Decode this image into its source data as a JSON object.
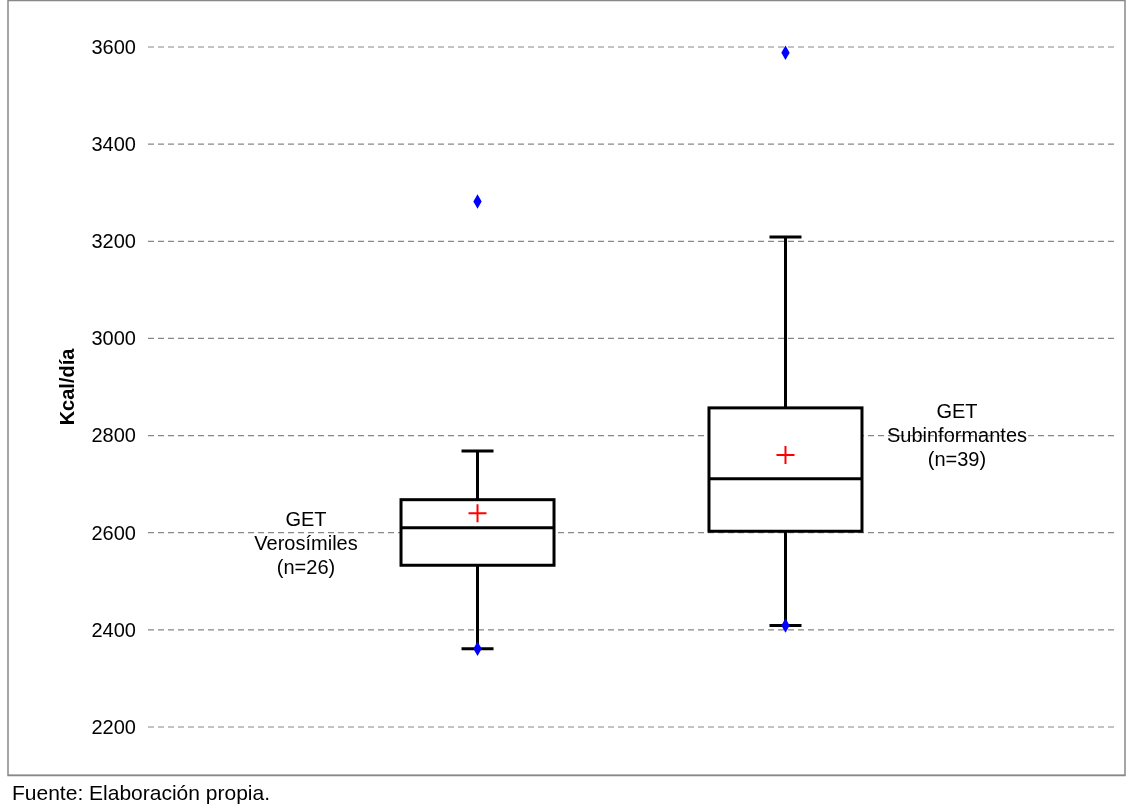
{
  "chart_data": {
    "type": "box",
    "ylabel": "Kcal/día",
    "categories": [
      "GET Verosímiles (n=26)",
      "GET Subinformantes (n=39)"
    ],
    "boxes": [
      {
        "low": 2361,
        "q1": 2533,
        "median": 2610,
        "q3": 2668,
        "high": 2768,
        "mean": 2640,
        "outliers": [
          2361,
          3282
        ]
      },
      {
        "low": 2409,
        "q1": 2603,
        "median": 2711,
        "q3": 2857,
        "high": 3209,
        "mean": 2760,
        "outliers": [
          2409,
          3588
        ]
      }
    ],
    "ylim": [
      2200,
      3600
    ],
    "yticks": [
      2200,
      2400,
      2600,
      2800,
      3000,
      3200,
      3400,
      3600
    ],
    "grid": "y",
    "annotations": [
      "Fuente: Elaboración propia."
    ]
  }
}
